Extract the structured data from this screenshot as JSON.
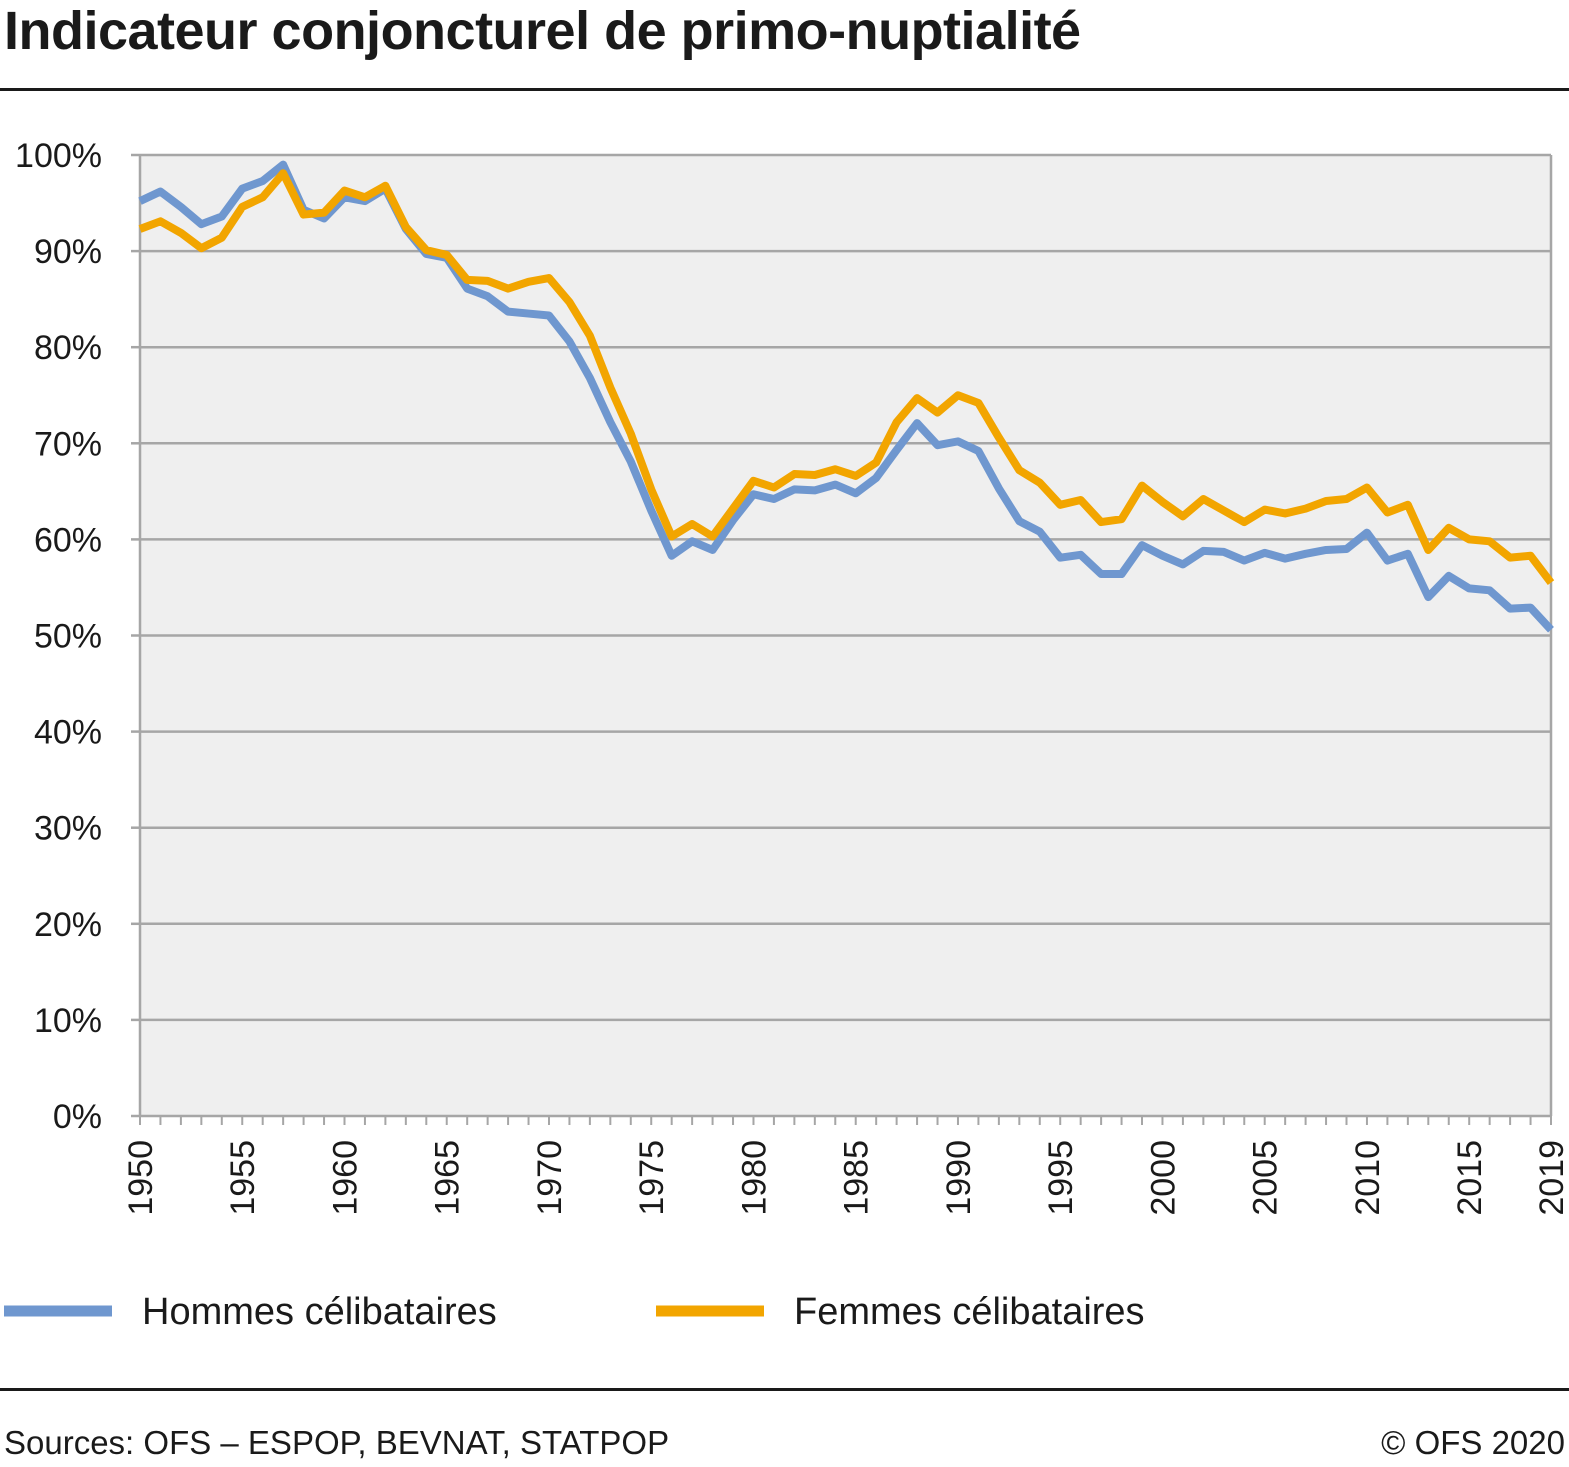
{
  "title": "Indicateur conjoncturel de primo-nuptialité",
  "footer": {
    "sources": "Sources: OFS – ESPOP, BEVNAT, STATPOP",
    "copyright": "© OFS 2020"
  },
  "colors": {
    "hommes": "#6f97cf",
    "femmes": "#f2a500",
    "plot_bg": "#efefef",
    "grid": "#a6a6a6",
    "axis": "#a6a6a6",
    "text": "#1a1a1a"
  },
  "chart_data": {
    "type": "line",
    "title": "Indicateur conjoncturel de primo-nuptialité",
    "xlabel": "",
    "ylabel": "",
    "xlim": [
      1950,
      2019
    ],
    "ylim": [
      0,
      100
    ],
    "y_ticks": [
      0,
      10,
      20,
      30,
      40,
      50,
      60,
      70,
      80,
      90,
      100
    ],
    "y_tick_labels": [
      "0%",
      "10%",
      "20%",
      "30%",
      "40%",
      "50%",
      "60%",
      "70%",
      "80%",
      "90%",
      "100%"
    ],
    "x_tick_labels": [
      "1950",
      "1955",
      "1960",
      "1965",
      "1970",
      "1975",
      "1980",
      "1985",
      "1990",
      "1995",
      "2000",
      "2005",
      "2010",
      "2015",
      "2019"
    ],
    "grid": "horizontal",
    "legend_position": "bottom",
    "x": [
      1950,
      1951,
      1952,
      1953,
      1954,
      1955,
      1956,
      1957,
      1958,
      1959,
      1960,
      1961,
      1962,
      1963,
      1964,
      1965,
      1966,
      1967,
      1968,
      1969,
      1970,
      1971,
      1972,
      1973,
      1974,
      1975,
      1976,
      1977,
      1978,
      1979,
      1980,
      1981,
      1982,
      1983,
      1984,
      1985,
      1986,
      1987,
      1988,
      1989,
      1990,
      1991,
      1992,
      1993,
      1994,
      1995,
      1996,
      1997,
      1998,
      1999,
      2000,
      2001,
      2002,
      2003,
      2004,
      2005,
      2006,
      2007,
      2008,
      2009,
      2010,
      2011,
      2012,
      2013,
      2014,
      2015,
      2016,
      2017,
      2018,
      2019
    ],
    "series": [
      {
        "name": "Hommes célibataires",
        "color": "#6f97cf",
        "values": [
          95.2,
          96.2,
          94.6,
          92.8,
          93.6,
          96.5,
          97.3,
          99.0,
          94.3,
          93.4,
          95.6,
          95.2,
          96.5,
          92.3,
          89.7,
          89.3,
          86.1,
          85.3,
          83.7,
          83.5,
          83.3,
          80.6,
          76.8,
          72.2,
          68.1,
          63.0,
          58.3,
          59.8,
          58.9,
          62.0,
          64.7,
          64.2,
          65.2,
          65.1,
          65.7,
          64.8,
          66.4,
          69.3,
          72.1,
          69.8,
          70.2,
          69.2,
          65.3,
          61.9,
          60.8,
          58.1,
          58.4,
          56.4,
          56.4,
          59.4,
          58.3,
          57.4,
          58.8,
          58.7,
          57.8,
          58.6,
          58.0,
          58.5,
          58.9,
          59.0,
          60.7,
          57.8,
          58.5,
          54.0,
          56.2,
          54.9,
          54.7,
          52.8,
          52.9,
          50.6
        ]
      },
      {
        "name": "Femmes célibataires",
        "color": "#f2a500",
        "values": [
          92.3,
          93.1,
          91.9,
          90.3,
          91.4,
          94.6,
          95.6,
          98.1,
          93.8,
          94.0,
          96.3,
          95.6,
          96.8,
          92.5,
          90.1,
          89.6,
          87.0,
          86.9,
          86.1,
          86.8,
          87.2,
          84.7,
          81.2,
          75.8,
          71.0,
          65.2,
          60.3,
          61.6,
          60.3,
          63.2,
          66.1,
          65.4,
          66.8,
          66.7,
          67.3,
          66.6,
          68.0,
          72.2,
          74.7,
          73.2,
          75.0,
          74.2,
          70.6,
          67.2,
          65.9,
          63.6,
          64.1,
          61.8,
          62.1,
          65.6,
          63.9,
          62.4,
          64.2,
          63.0,
          61.8,
          63.1,
          62.7,
          63.2,
          64.0,
          64.2,
          65.4,
          62.8,
          63.6,
          58.9,
          61.2,
          60.0,
          59.8,
          58.1,
          58.3,
          55.5
        ]
      }
    ]
  }
}
